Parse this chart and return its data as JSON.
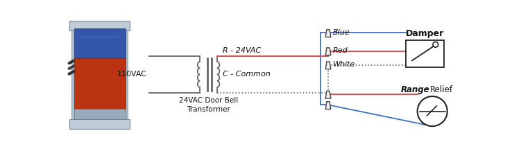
{
  "bg_color": "#ffffff",
  "label_110vac": "110VAC",
  "label_24vac_transformer": "24VAC Door Bell\nTransformer",
  "label_r_24vac": "R - 24VAC",
  "label_c_common": "C - Common",
  "label_blue": "Blue",
  "label_red": "Red",
  "label_white": "White",
  "label_damper": "Damper",
  "label_range": "Range",
  "label_relief": "Relief",
  "wire_red": "#d44040",
  "wire_blue": "#4070c8",
  "wire_gray": "#666666",
  "wire_dotted": "#666666",
  "text_color": "#111111",
  "text_italic_color": "#111111",
  "connector_fill": "#f0f0f0",
  "connector_edge": "#444444",
  "photo_bg": "#b8c8d8",
  "photo_blue": "#3355aa",
  "photo_red": "#bb3311",
  "photo_silver": "#9aacbc",
  "photo_base": "#8899aa"
}
